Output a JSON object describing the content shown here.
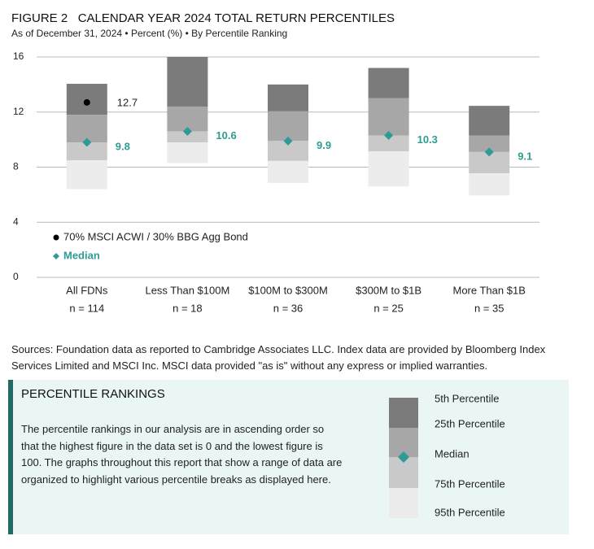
{
  "chart_data": {
    "type": "percentile_bar",
    "figure_label": "FIGURE 2",
    "title": "CALENDAR YEAR 2024 TOTAL RETURN PERCENTILES",
    "subtitle": "As of December 31, 2024 • Percent (%) • By Percentile Ranking",
    "categories": [
      "All FDNs",
      "Less Than $100M",
      "$100M to $300M",
      "$300M to $1B",
      "More Than $1B"
    ],
    "counts": [
      "n = 114",
      "n = 18",
      "n = 36",
      "n = 25",
      "n = 35"
    ],
    "ylim": [
      0,
      16
    ],
    "yticks": [
      0,
      4,
      8,
      12,
      16
    ],
    "grid": true,
    "band_colors": [
      "#7b7b7c",
      "#a7a7a8",
      "#c9c9ca",
      "#ececec"
    ],
    "series": [
      {
        "name": "5th Percentile",
        "values": [
          14.05,
          16.0,
          14.0,
          15.2,
          12.45
        ]
      },
      {
        "name": "25th Percentile",
        "values": [
          11.8,
          12.4,
          12.05,
          13.0,
          10.3
        ]
      },
      {
        "name": "Median",
        "color": "#2e9c94",
        "values": [
          9.8,
          10.6,
          9.9,
          10.3,
          9.1
        ]
      },
      {
        "name": "75th Percentile",
        "values": [
          8.5,
          9.8,
          8.45,
          9.15,
          7.55
        ]
      },
      {
        "name": "95th Percentile",
        "values": [
          6.4,
          8.3,
          6.85,
          6.6,
          5.95
        ]
      },
      {
        "name": "70% MSCI ACWI / 30% BBG Agg Bond",
        "color": "#000000",
        "values": [
          12.7,
          null,
          null,
          null,
          null
        ]
      }
    ]
  },
  "sources": "Sources: Foundation data as reported to Cambridge Associates LLC. Index data are provided by Bloomberg Index Services Limited and MSCI Inc. MSCI data provided \"as is\" without any express or implied warranties.",
  "box": {
    "title": "PERCENTILE RANKINGS",
    "text": "The percentile rankings in our analysis are in ascending order so that the highest figure in the data set is 0 and the lowest figure is 100. The graphs throughout this report that show a range of data are organized to highlight various percentile breaks as displayed here."
  }
}
